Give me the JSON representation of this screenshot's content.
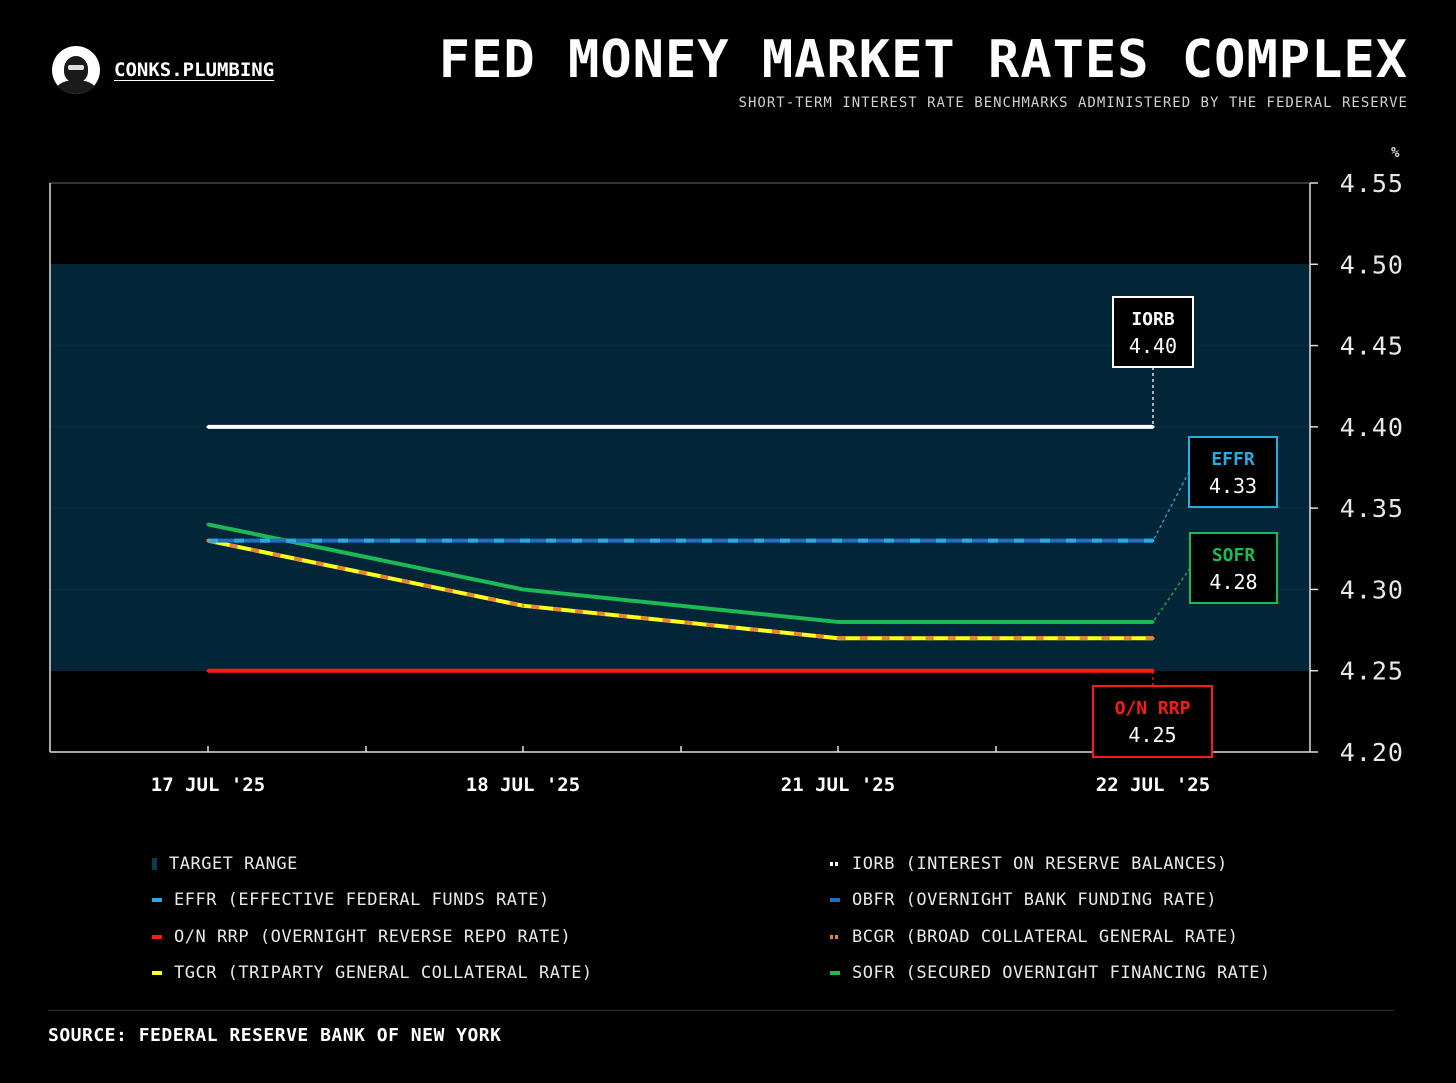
{
  "header": {
    "brand": "CONKS.PLUMBING",
    "title": "FED MONEY MARKET RATES COMPLEX",
    "subtitle": "SHORT-TERM INTEREST RATE BENCHMARKS ADMINISTERED BY THE FEDERAL RESERVE"
  },
  "chart_data": {
    "type": "line",
    "title": "FED MONEY MARKET RATES COMPLEX",
    "subtitle": "SHORT-TERM INTEREST RATE BENCHMARKS ADMINISTERED BY THE FEDERAL RESERVE",
    "ylabel": "%",
    "ylim": [
      4.2,
      4.55
    ],
    "yticks": [
      "4.55",
      "4.50",
      "4.45",
      "4.40",
      "4.35",
      "4.30",
      "4.25",
      "4.20"
    ],
    "categories": [
      "17 JUL '25",
      "18 JUL '25",
      "21 JUL '25",
      "22 JUL '25"
    ],
    "target_range": {
      "name": "TARGET RANGE",
      "low": 4.25,
      "high": 4.5,
      "color": "#022638"
    },
    "series": [
      {
        "name": "IORB",
        "values": [
          4.4,
          4.4,
          4.4,
          4.4
        ],
        "color": "#ffffff"
      },
      {
        "name": "OBFR",
        "values": [
          4.33,
          4.33,
          4.33,
          4.33
        ],
        "color": "#1f6fc1"
      },
      {
        "name": "EFFR",
        "values": [
          4.33,
          4.33,
          4.33,
          4.33
        ],
        "color": "#29aae1"
      },
      {
        "name": "O/N RRP",
        "values": [
          4.25,
          4.25,
          4.25,
          4.25
        ],
        "color": "#ff1a1a"
      },
      {
        "name": "SOFR",
        "values": [
          4.34,
          4.3,
          4.28,
          4.28
        ],
        "color": "#1db954"
      },
      {
        "name": "TGCR",
        "values": [
          4.33,
          4.29,
          4.27,
          4.27
        ],
        "color": "#ffff1a"
      },
      {
        "name": "BCGR",
        "values": [
          4.33,
          4.29,
          4.27,
          4.27
        ],
        "color": "#e8833a"
      }
    ],
    "annotations": [
      {
        "label": "IORB",
        "value": "4.40",
        "color": "#ffffff"
      },
      {
        "label": "EFFR",
        "value": "4.33",
        "color": "#29aae1"
      },
      {
        "label": "SOFR",
        "value": "4.28",
        "color": "#1db954"
      },
      {
        "label": "O/N RRP",
        "value": "4.25",
        "color": "#ff1a1a"
      }
    ]
  },
  "legend": {
    "left": [
      {
        "label": "TARGET RANGE",
        "color": "#022638"
      },
      {
        "label": "EFFR (EFFECTIVE FEDERAL FUNDS RATE)",
        "color": "#29aae1"
      },
      {
        "label": "O/N RRP (OVERNIGHT REVERSE REPO RATE)",
        "color": "#ff1a1a"
      },
      {
        "label": "TGCR (TRIPARTY GENERAL COLLATERAL RATE)",
        "color": "#ffff1a"
      }
    ],
    "right": [
      {
        "label": "IORB (INTEREST ON RESERVE BALANCES)",
        "color": "#ffffff"
      },
      {
        "label": "OBFR (OVERNIGHT BANK FUNDING RATE)",
        "color": "#1f6fc1"
      },
      {
        "label": "BCGR (BROAD COLLATERAL GENERAL RATE)",
        "color": "#e8833a"
      },
      {
        "label": "SOFR (SECURED OVERNIGHT FINANCING RATE)",
        "color": "#1db954"
      }
    ]
  },
  "footer": {
    "source": "SOURCE: FEDERAL RESERVE BANK OF NEW YORK"
  }
}
